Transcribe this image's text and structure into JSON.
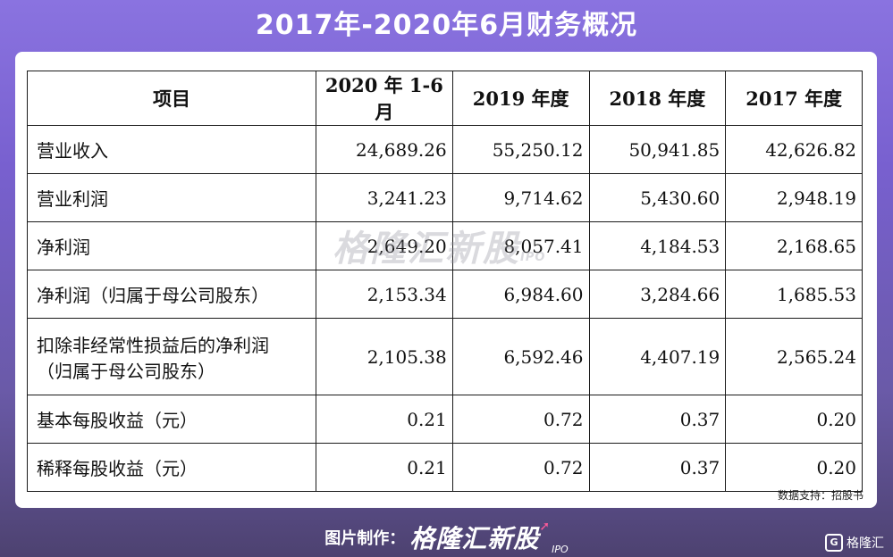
{
  "title": "2017年-2020年6月财务概况",
  "table": {
    "headers": [
      "项目",
      "2020 年 1-6 月",
      "2019 年度",
      "2018 年度",
      "2017 年度"
    ],
    "rows": [
      {
        "label": "营业收入",
        "values": [
          "24,689.26",
          "55,250.12",
          "50,941.85",
          "42,626.82"
        ]
      },
      {
        "label": "营业利润",
        "values": [
          "3,241.23",
          "9,714.62",
          "5,430.60",
          "2,948.19"
        ]
      },
      {
        "label": "净利润",
        "values": [
          "2,649.20",
          "8,057.41",
          "4,184.53",
          "2,168.65"
        ]
      },
      {
        "label": "净利润（归属于母公司股东）",
        "values": [
          "2,153.34",
          "6,984.60",
          "3,284.66",
          "1,685.53"
        ]
      },
      {
        "label": "扣除非经常性损益后的净利润",
        "label2": "（归属于母公司股东）",
        "values": [
          "2,105.38",
          "6,592.46",
          "4,407.19",
          "2,565.24"
        ]
      },
      {
        "label": "基本每股收益（元）",
        "values": [
          "0.21",
          "0.72",
          "0.37",
          "0.20"
        ]
      },
      {
        "label": "稀释每股收益（元）",
        "values": [
          "0.21",
          "0.72",
          "0.37",
          "0.20"
        ]
      }
    ]
  },
  "source": "数据支持：招股书",
  "watermark": {
    "brand": "格隆汇新股",
    "sub": "IPO"
  },
  "footer": {
    "label": "图片制作：",
    "brand": "格隆汇新股",
    "sub": "IPO"
  },
  "corner": {
    "icon_letter": "G",
    "label": "格隆汇"
  }
}
